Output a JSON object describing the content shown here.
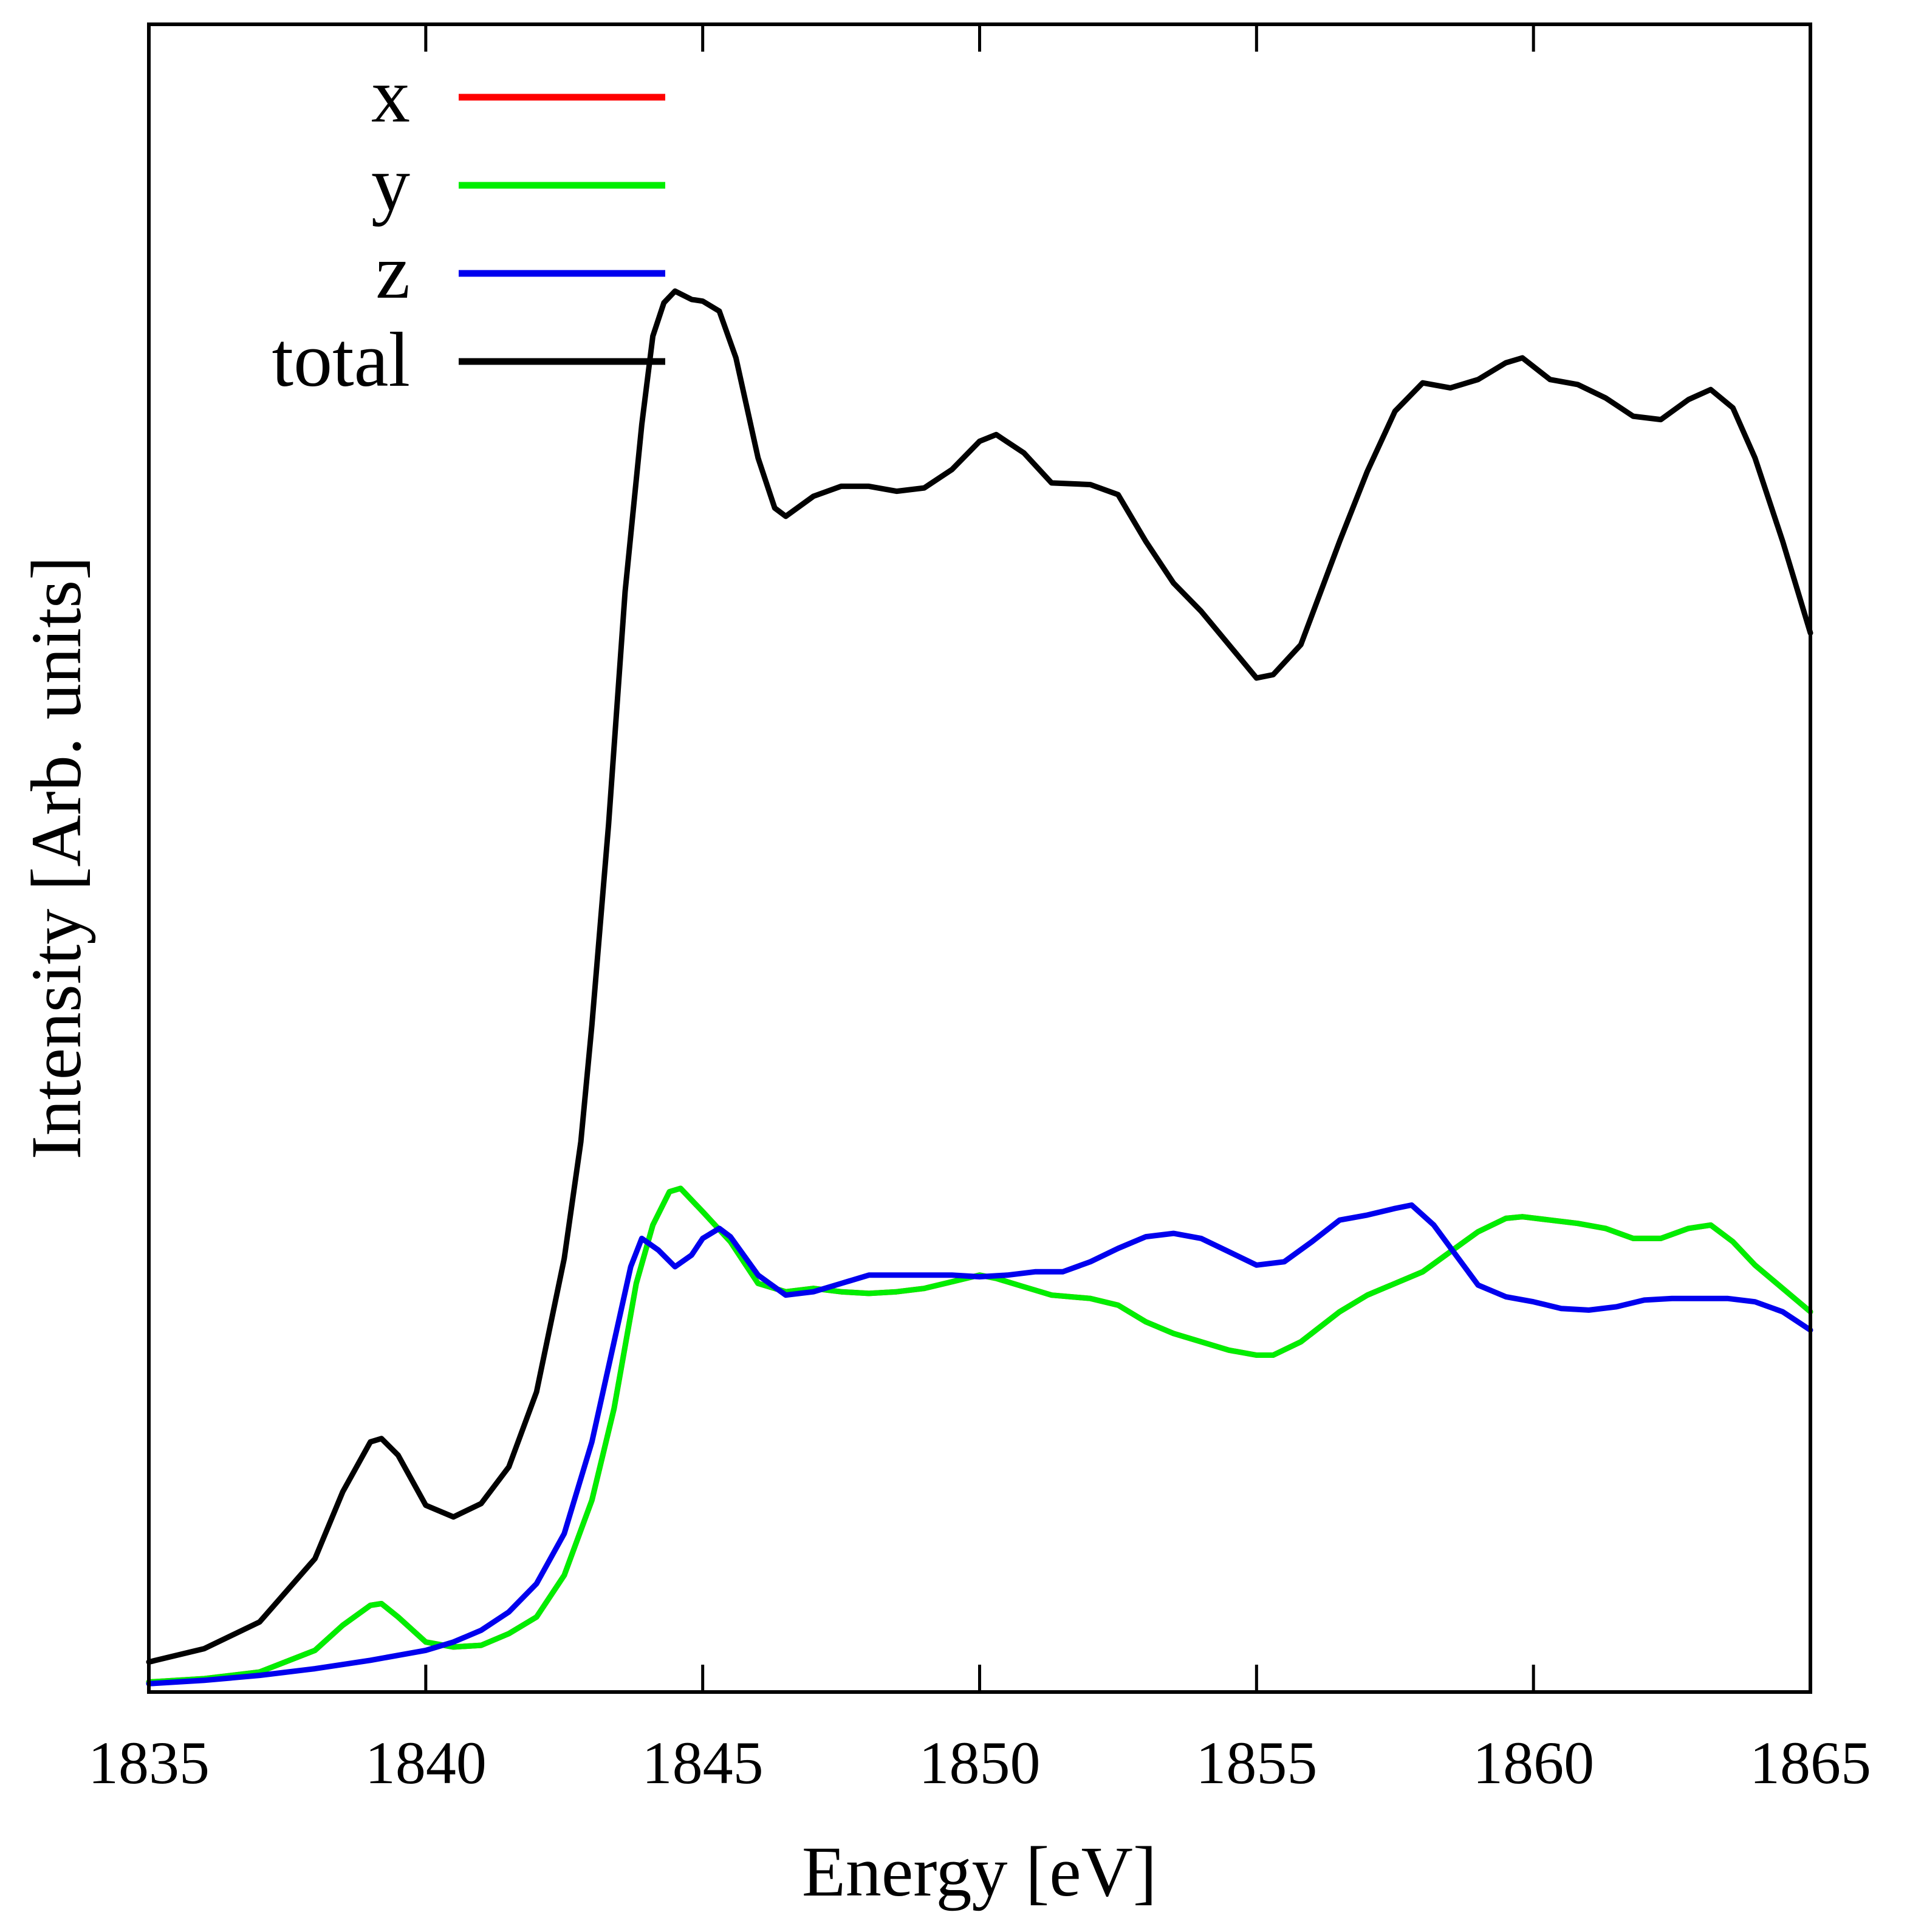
{
  "chart_data": {
    "type": "line",
    "xlabel": "Energy [eV]",
    "ylabel": "Intensity [Arb. units]",
    "xlim": [
      1835,
      1865
    ],
    "ylim": [
      0,
      1
    ],
    "x_ticks": [
      "1835",
      "1840",
      "1845",
      "1850",
      "1855",
      "1860",
      "1865"
    ],
    "y_ticks_shown": false,
    "grid": false,
    "legend_position": "top-left",
    "series": [
      {
        "name": "x",
        "color": "#ff0000",
        "x": [
          1835.0,
          1836.0,
          1837.0,
          1838.0,
          1838.5,
          1839.0,
          1839.2,
          1839.5,
          1840.0,
          1840.5,
          1841.0,
          1841.5,
          1842.0,
          1842.5,
          1843.0,
          1843.4,
          1843.8,
          1844.1,
          1844.4,
          1844.6,
          1845.0,
          1845.5,
          1846.0,
          1846.5,
          1847.0,
          1847.5,
          1848.0,
          1848.5,
          1849.0,
          1849.5,
          1850.0,
          1850.3,
          1850.8,
          1851.3,
          1852.0,
          1852.5,
          1853.0,
          1853.5,
          1854.0,
          1854.5,
          1855.0,
          1855.3,
          1855.8,
          1856.5,
          1857.0,
          1857.5,
          1858.0,
          1858.5,
          1859.0,
          1859.5,
          1859.8,
          1860.3,
          1860.8,
          1861.3,
          1861.8,
          1862.3,
          1862.8,
          1863.2,
          1863.6,
          1864.0,
          1864.5,
          1865.0
        ],
        "y": [
          0.006,
          0.008,
          0.012,
          0.025,
          0.04,
          0.052,
          0.053,
          0.045,
          0.03,
          0.027,
          0.028,
          0.035,
          0.045,
          0.07,
          0.115,
          0.17,
          0.245,
          0.28,
          0.3,
          0.302,
          0.288,
          0.27,
          0.245,
          0.24,
          0.242,
          0.24,
          0.239,
          0.24,
          0.242,
          0.246,
          0.25,
          0.248,
          0.243,
          0.238,
          0.236,
          0.232,
          0.222,
          0.215,
          0.21,
          0.205,
          0.202,
          0.202,
          0.21,
          0.228,
          0.238,
          0.245,
          0.252,
          0.264,
          0.276,
          0.284,
          0.285,
          0.283,
          0.281,
          0.278,
          0.272,
          0.272,
          0.278,
          0.28,
          0.27,
          0.256,
          0.242,
          0.228
        ]
      },
      {
        "name": "y",
        "color": "#00ee00",
        "x": [
          1835.0,
          1836.0,
          1837.0,
          1838.0,
          1838.5,
          1839.0,
          1839.2,
          1839.5,
          1840.0,
          1840.5,
          1841.0,
          1841.5,
          1842.0,
          1842.5,
          1843.0,
          1843.4,
          1843.8,
          1844.1,
          1844.4,
          1844.6,
          1845.0,
          1845.5,
          1846.0,
          1846.5,
          1847.0,
          1847.5,
          1848.0,
          1848.5,
          1849.0,
          1849.5,
          1850.0,
          1850.3,
          1850.8,
          1851.3,
          1852.0,
          1852.5,
          1853.0,
          1853.5,
          1854.0,
          1854.5,
          1855.0,
          1855.3,
          1855.8,
          1856.5,
          1857.0,
          1857.5,
          1858.0,
          1858.5,
          1859.0,
          1859.5,
          1859.8,
          1860.3,
          1860.8,
          1861.3,
          1861.8,
          1862.3,
          1862.8,
          1863.2,
          1863.6,
          1864.0,
          1864.5,
          1865.0
        ],
        "y": [
          0.006,
          0.008,
          0.012,
          0.025,
          0.04,
          0.052,
          0.053,
          0.045,
          0.03,
          0.027,
          0.028,
          0.035,
          0.045,
          0.07,
          0.115,
          0.17,
          0.245,
          0.28,
          0.3,
          0.302,
          0.288,
          0.27,
          0.245,
          0.24,
          0.242,
          0.24,
          0.239,
          0.24,
          0.242,
          0.246,
          0.25,
          0.248,
          0.243,
          0.238,
          0.236,
          0.232,
          0.222,
          0.215,
          0.21,
          0.205,
          0.202,
          0.202,
          0.21,
          0.228,
          0.238,
          0.245,
          0.252,
          0.264,
          0.276,
          0.284,
          0.285,
          0.283,
          0.281,
          0.278,
          0.272,
          0.272,
          0.278,
          0.28,
          0.27,
          0.256,
          0.242,
          0.228
        ]
      },
      {
        "name": "z",
        "color": "#0000ee",
        "x": [
          1835.0,
          1836.0,
          1837.0,
          1838.0,
          1839.0,
          1840.0,
          1840.5,
          1841.0,
          1841.5,
          1842.0,
          1842.5,
          1843.0,
          1843.4,
          1843.7,
          1843.9,
          1844.2,
          1844.5,
          1844.8,
          1845.0,
          1845.3,
          1845.5,
          1846.0,
          1846.5,
          1847.0,
          1847.5,
          1848.0,
          1848.5,
          1849.0,
          1849.5,
          1850.0,
          1850.5,
          1851.0,
          1851.5,
          1852.0,
          1852.5,
          1853.0,
          1853.5,
          1854.0,
          1854.5,
          1855.0,
          1855.5,
          1856.0,
          1856.5,
          1857.0,
          1857.5,
          1857.8,
          1858.2,
          1858.6,
          1859.0,
          1859.5,
          1860.0,
          1860.5,
          1861.0,
          1861.5,
          1862.0,
          1862.5,
          1863.0,
          1863.5,
          1864.0,
          1864.5,
          1865.0
        ],
        "y": [
          0.005,
          0.007,
          0.01,
          0.014,
          0.019,
          0.025,
          0.03,
          0.037,
          0.048,
          0.065,
          0.095,
          0.15,
          0.21,
          0.255,
          0.272,
          0.265,
          0.255,
          0.262,
          0.272,
          0.278,
          0.273,
          0.25,
          0.238,
          0.24,
          0.245,
          0.25,
          0.25,
          0.25,
          0.25,
          0.249,
          0.25,
          0.252,
          0.252,
          0.258,
          0.266,
          0.273,
          0.275,
          0.272,
          0.264,
          0.256,
          0.258,
          0.27,
          0.283,
          0.286,
          0.29,
          0.292,
          0.28,
          0.262,
          0.244,
          0.237,
          0.234,
          0.23,
          0.229,
          0.231,
          0.235,
          0.236,
          0.236,
          0.236,
          0.234,
          0.228,
          0.217
        ]
      },
      {
        "name": "total",
        "color": "#000000",
        "x": [
          1835.0,
          1836.0,
          1837.0,
          1838.0,
          1838.5,
          1839.0,
          1839.2,
          1839.5,
          1840.0,
          1840.5,
          1841.0,
          1841.5,
          1842.0,
          1842.5,
          1842.8,
          1843.0,
          1843.3,
          1843.6,
          1843.9,
          1844.1,
          1844.3,
          1844.5,
          1844.8,
          1845.0,
          1845.3,
          1845.6,
          1846.0,
          1846.3,
          1846.5,
          1847.0,
          1847.5,
          1848.0,
          1848.5,
          1849.0,
          1849.5,
          1850.0,
          1850.3,
          1850.8,
          1851.3,
          1852.0,
          1852.5,
          1853.0,
          1853.5,
          1854.0,
          1854.5,
          1855.0,
          1855.3,
          1855.8,
          1856.5,
          1857.0,
          1857.5,
          1858.0,
          1858.5,
          1859.0,
          1859.5,
          1859.8,
          1860.3,
          1860.8,
          1861.3,
          1861.8,
          1862.3,
          1862.8,
          1863.2,
          1863.6,
          1864.0,
          1864.5,
          1865.0
        ],
        "y": [
          0.018,
          0.026,
          0.042,
          0.08,
          0.12,
          0.15,
          0.152,
          0.142,
          0.112,
          0.105,
          0.113,
          0.135,
          0.18,
          0.26,
          0.33,
          0.4,
          0.52,
          0.66,
          0.76,
          0.813,
          0.833,
          0.84,
          0.835,
          0.834,
          0.828,
          0.8,
          0.74,
          0.71,
          0.705,
          0.717,
          0.723,
          0.723,
          0.72,
          0.722,
          0.733,
          0.75,
          0.754,
          0.743,
          0.725,
          0.724,
          0.718,
          0.69,
          0.665,
          0.648,
          0.628,
          0.608,
          0.61,
          0.628,
          0.69,
          0.732,
          0.768,
          0.785,
          0.782,
          0.787,
          0.797,
          0.8,
          0.787,
          0.784,
          0.776,
          0.765,
          0.763,
          0.775,
          0.781,
          0.77,
          0.74,
          0.69,
          0.635
        ]
      }
    ]
  }
}
